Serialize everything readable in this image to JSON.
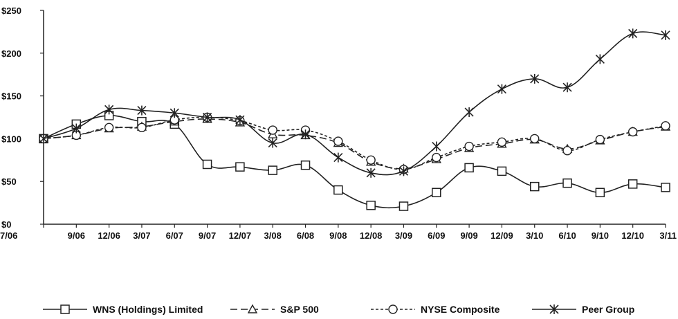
{
  "chart_data": {
    "type": "line",
    "categories": [
      "7/06",
      "9/06",
      "12/06",
      "3/07",
      "6/07",
      "9/07",
      "12/07",
      "3/08",
      "6/08",
      "9/08",
      "12/08",
      "3/09",
      "6/09",
      "9/09",
      "12/09",
      "3/10",
      "6/10",
      "9/10",
      "12/10",
      "3/11"
    ],
    "y_tick_labels": [
      "$0",
      "$50",
      "$100",
      "$150",
      "$200",
      "$250"
    ],
    "ylim": [
      0,
      250
    ],
    "y_ticks": [
      0,
      50,
      100,
      150,
      200,
      250
    ],
    "grid": false,
    "legend_position": "bottom",
    "series": [
      {
        "name": "WNS (Holdings) Limited",
        "marker": "square",
        "dash": "solid",
        "values": [
          100,
          117,
          127,
          120,
          117,
          70,
          67,
          63,
          69,
          40,
          22,
          21,
          37,
          66,
          62,
          44,
          48,
          37,
          47,
          43
        ]
      },
      {
        "name": "S&P 500",
        "marker": "triangle",
        "dash": "long-dash",
        "values": [
          100,
          104,
          112,
          114,
          120,
          123,
          119,
          105,
          104,
          95,
          73,
          65,
          76,
          89,
          94,
          99,
          88,
          98,
          108,
          114
        ]
      },
      {
        "name": "NYSE Composite",
        "marker": "circle",
        "dash": "short-dash",
        "values": [
          100,
          104,
          113,
          113,
          122,
          125,
          121,
          110,
          110,
          97,
          75,
          64,
          78,
          91,
          96,
          100,
          86,
          99,
          108,
          115
        ]
      },
      {
        "name": "Peer Group",
        "marker": "star",
        "dash": "solid",
        "values": [
          100,
          112,
          134,
          133,
          130,
          125,
          122,
          95,
          105,
          78,
          60,
          62,
          91,
          131,
          158,
          170,
          160,
          193,
          223,
          221
        ]
      }
    ],
    "colors": {
      "line": "#222222",
      "axis": "#222222"
    }
  }
}
